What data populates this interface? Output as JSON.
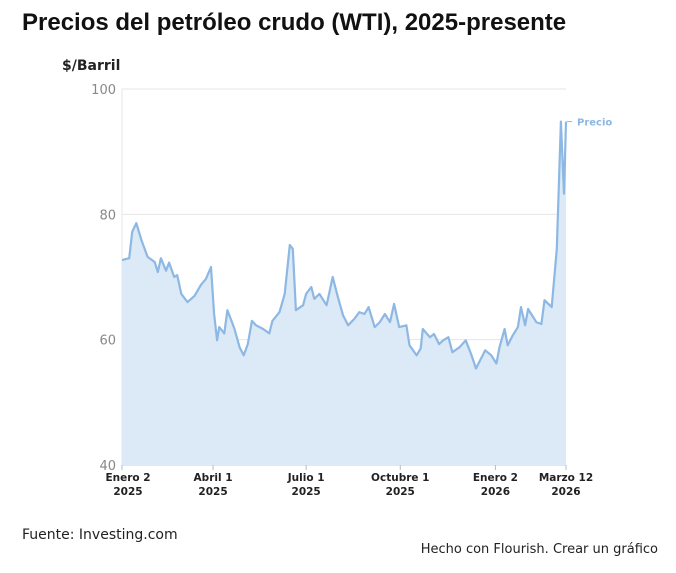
{
  "chart_data": {
    "type": "area",
    "title": "Precios del petróleo crudo (WTI), 2025-presente",
    "ylabel": "$/Barril",
    "xlabel": "",
    "ylim": [
      40,
      100
    ],
    "yticks": [
      40,
      60,
      80,
      100
    ],
    "x_unit": "days since 2025-01-02",
    "xlim": [
      0,
      434
    ],
    "xticks": [
      {
        "day": 0,
        "line1": "Enero 2",
        "line2": "2025"
      },
      {
        "day": 89,
        "line1": "Abril 1",
        "line2": "2025"
      },
      {
        "day": 180,
        "line1": "Julio 1",
        "line2": "2025"
      },
      {
        "day": 272,
        "line1": "Octubre 1",
        "line2": "2025"
      },
      {
        "day": 365,
        "line1": "Enero 2",
        "line2": "2026"
      },
      {
        "day": 434,
        "line1": "Marzo 12",
        "line2": "2026"
      }
    ],
    "grid": true,
    "series": [
      {
        "name": "Precio",
        "color": "#8db8e3",
        "fill": "#dce9f6",
        "x": [
          0,
          7,
          10,
          14,
          19,
          25,
          32,
          35,
          38,
          43,
          46,
          51,
          54,
          58,
          64,
          71,
          77,
          82,
          87,
          90,
          93,
          95,
          100,
          103,
          107,
          110,
          115,
          119,
          123,
          127,
          131,
          138,
          144,
          147,
          154,
          159,
          164,
          167,
          170,
          177,
          180,
          185,
          188,
          193,
          200,
          206,
          211,
          216,
          221,
          227,
          232,
          237,
          241,
          247,
          252,
          257,
          262,
          266,
          271,
          278,
          281,
          288,
          292,
          294,
          301,
          305,
          310,
          314,
          319,
          323,
          330,
          336,
          341,
          346,
          355,
          361,
          366,
          369,
          374,
          377,
          382,
          387,
          390,
          394,
          397,
          405,
          410,
          413,
          420,
          425,
          429,
          432,
          434
        ],
        "values": [
          72.7,
          73,
          77.2,
          78.6,
          75.9,
          73.2,
          72.4,
          70.8,
          73,
          71,
          72.3,
          70,
          70.3,
          67.3,
          66,
          67,
          68.7,
          69.7,
          71.6,
          64.1,
          59.9,
          62,
          61,
          64.7,
          63,
          61.7,
          58.8,
          57.5,
          59.3,
          63,
          62.3,
          61.7,
          61,
          63,
          64.4,
          67.3,
          75.1,
          74.5,
          64.7,
          65.5,
          67.3,
          68.4,
          66.5,
          67.3,
          65.5,
          70,
          66.8,
          63.9,
          62.3,
          63.3,
          64.4,
          64.1,
          65.2,
          62,
          62.8,
          64.1,
          62.8,
          65.7,
          62,
          62.3,
          59.1,
          57.5,
          58.6,
          61.7,
          60.4,
          60.9,
          59.3,
          59.9,
          60.4,
          58,
          58.8,
          59.9,
          57.8,
          55.4,
          58.3,
          57.5,
          56.2,
          58.8,
          61.7,
          59.1,
          60.7,
          62,
          65.2,
          62.3,
          64.9,
          62.8,
          62.5,
          66.3,
          65.2,
          74.5,
          94.8,
          83.3,
          94.8
        ]
      }
    ]
  },
  "footer": {
    "source": "Fuente: Investing.com",
    "made_with": "Hecho con Flourish.",
    "create_link": "Crear un gráfico"
  }
}
